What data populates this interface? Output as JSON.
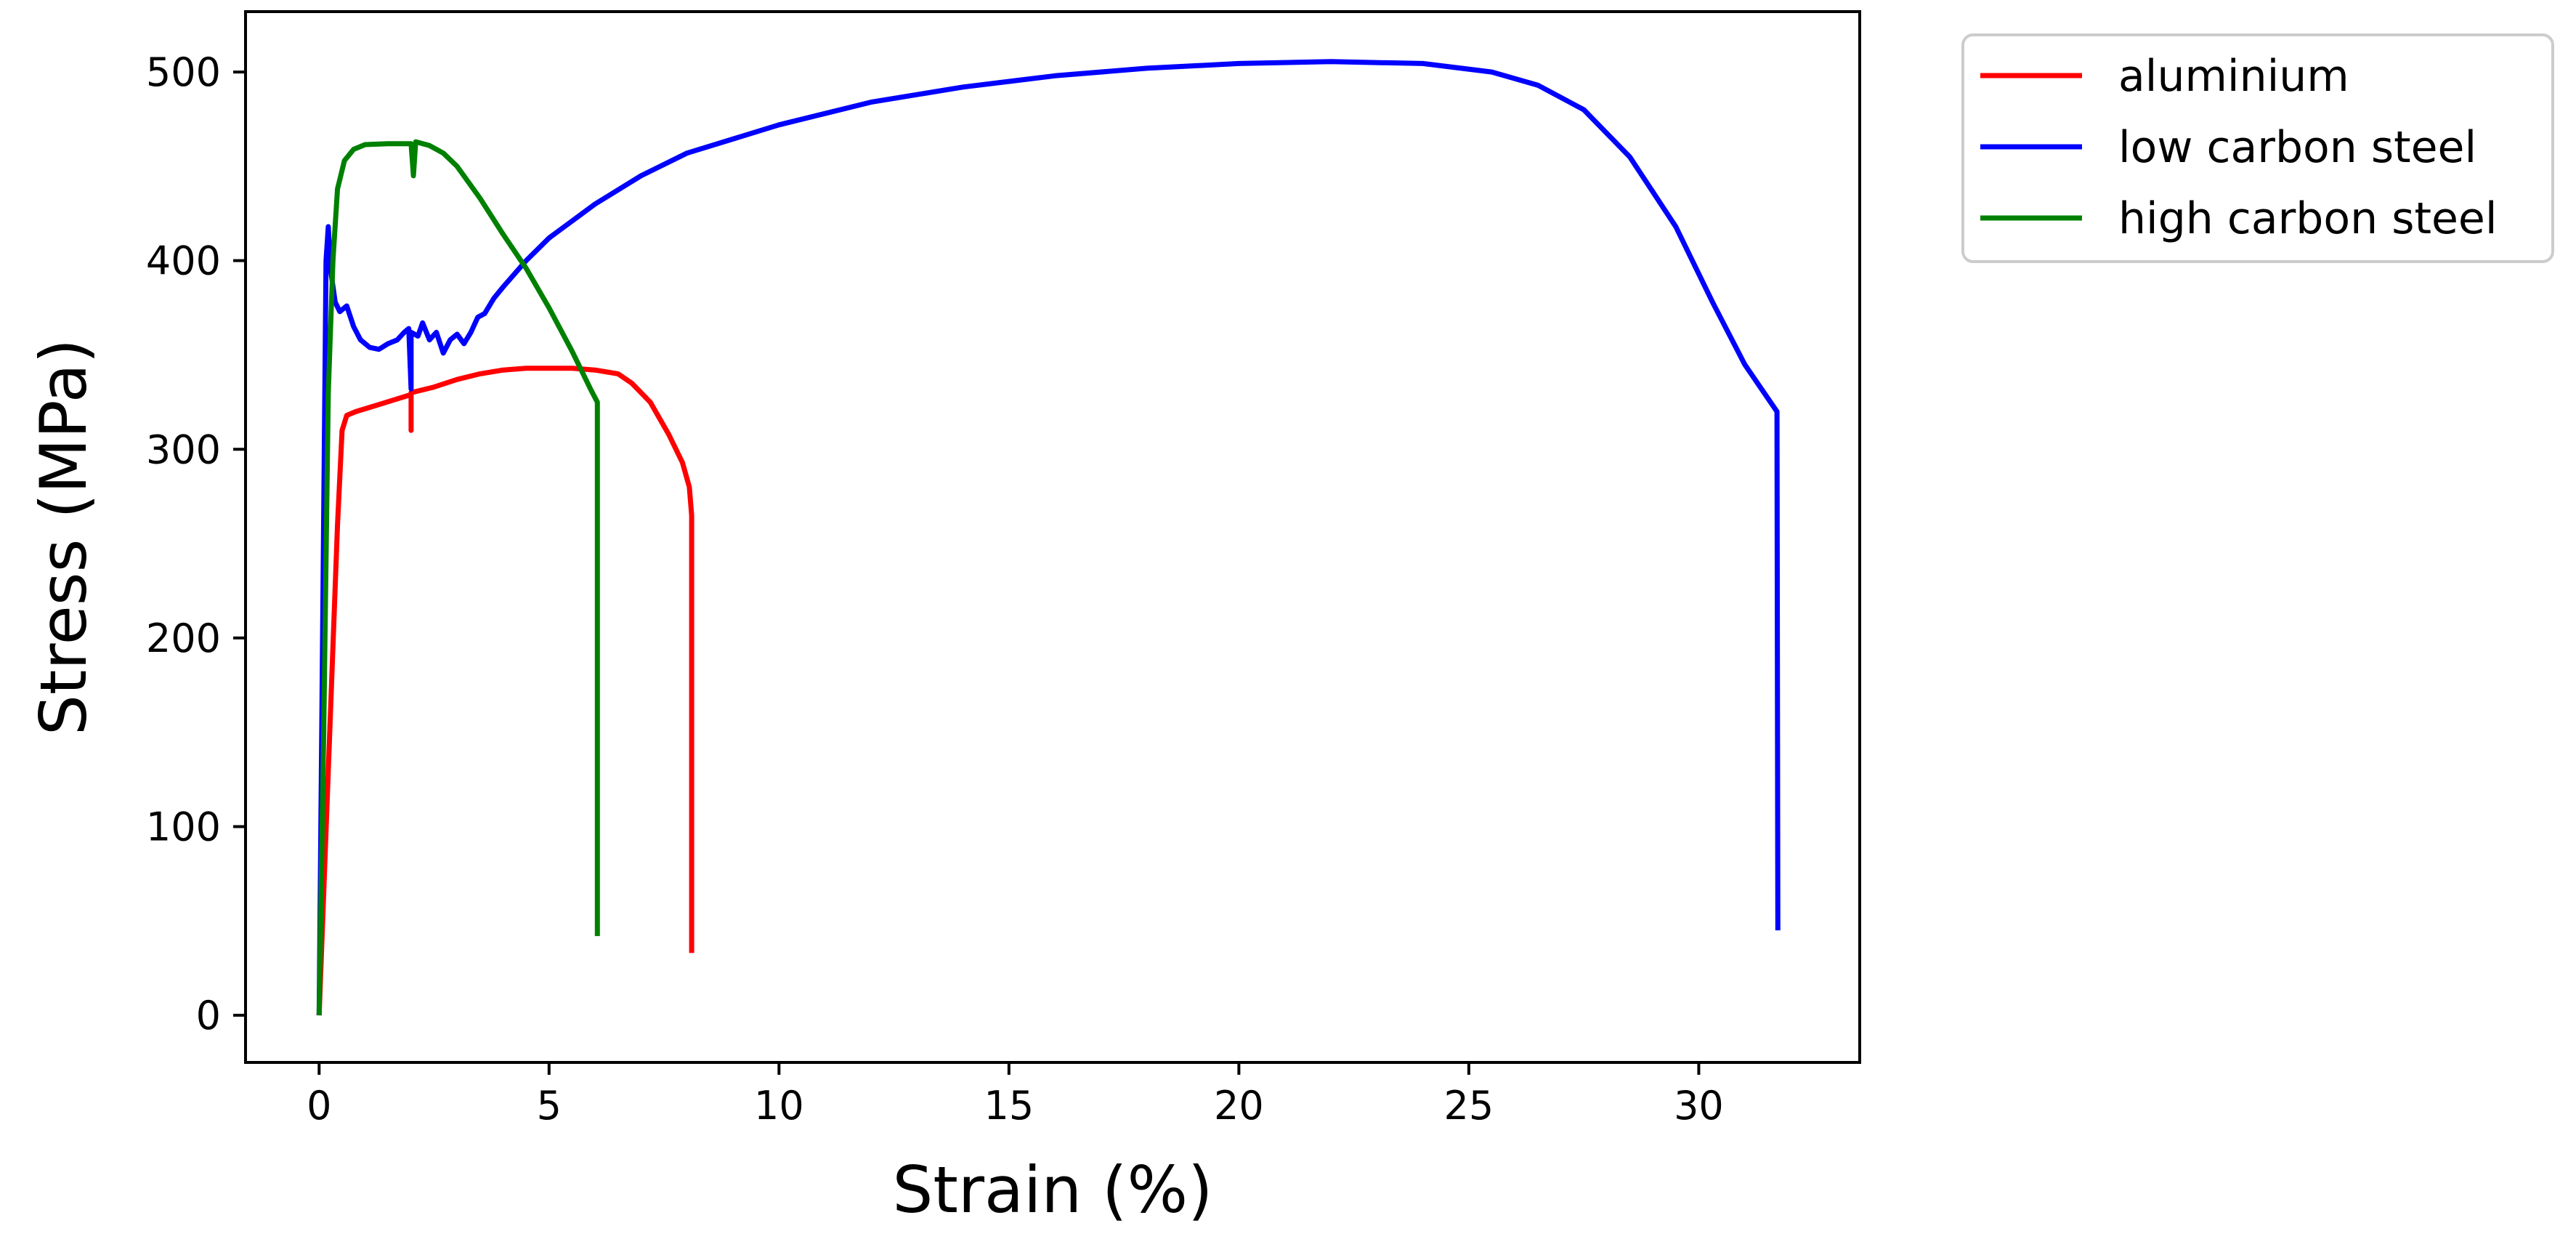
{
  "chart_data": {
    "type": "line",
    "xlabel": "Strain (%)",
    "ylabel": "Stress (MPa)",
    "xlim": [
      -1.6,
      33.5
    ],
    "ylim": [
      -25,
      532
    ],
    "xticks": [
      0,
      5,
      10,
      15,
      20,
      25,
      30
    ],
    "yticks": [
      0,
      100,
      200,
      300,
      400,
      500
    ],
    "grid": false,
    "legend": "outside-top-right",
    "series": [
      {
        "name": "aluminium",
        "color": "#ff0000",
        "points": [
          [
            0,
            0
          ],
          [
            0.4,
            260
          ],
          [
            0.5,
            310
          ],
          [
            0.6,
            318
          ],
          [
            0.8,
            320
          ],
          [
            1.2,
            323
          ],
          [
            1.6,
            326
          ],
          [
            2.0,
            329
          ],
          [
            2.0,
            310
          ],
          [
            2.0,
            330
          ],
          [
            2.5,
            333
          ],
          [
            3.0,
            337
          ],
          [
            3.5,
            340
          ],
          [
            4.0,
            342
          ],
          [
            4.5,
            343
          ],
          [
            5.0,
            343
          ],
          [
            5.5,
            343
          ],
          [
            6.0,
            342
          ],
          [
            6.5,
            340
          ],
          [
            6.8,
            335
          ],
          [
            7.2,
            325
          ],
          [
            7.6,
            308
          ],
          [
            7.9,
            293
          ],
          [
            8.05,
            280
          ],
          [
            8.1,
            265
          ],
          [
            8.1,
            33
          ]
        ]
      },
      {
        "name": "low carbon steel",
        "color": "#0000ff",
        "points": [
          [
            0,
            0
          ],
          [
            0.15,
            400
          ],
          [
            0.2,
            418
          ],
          [
            0.25,
            395
          ],
          [
            0.35,
            378
          ],
          [
            0.45,
            373
          ],
          [
            0.6,
            376
          ],
          [
            0.75,
            365
          ],
          [
            0.9,
            358
          ],
          [
            1.1,
            354
          ],
          [
            1.3,
            353
          ],
          [
            1.5,
            356
          ],
          [
            1.7,
            358
          ],
          [
            1.85,
            362
          ],
          [
            1.95,
            364
          ],
          [
            2.0,
            332
          ],
          [
            2.0,
            362
          ],
          [
            2.15,
            360
          ],
          [
            2.25,
            367
          ],
          [
            2.4,
            358
          ],
          [
            2.55,
            362
          ],
          [
            2.7,
            351
          ],
          [
            2.85,
            358
          ],
          [
            3.0,
            361
          ],
          [
            3.15,
            356
          ],
          [
            3.3,
            362
          ],
          [
            3.45,
            370
          ],
          [
            3.6,
            372
          ],
          [
            3.8,
            380
          ],
          [
            4.0,
            386
          ],
          [
            4.5,
            400
          ],
          [
            5.0,
            412
          ],
          [
            6.0,
            430
          ],
          [
            7.0,
            445
          ],
          [
            8.0,
            457
          ],
          [
            10.0,
            472
          ],
          [
            12.0,
            484
          ],
          [
            14.0,
            492
          ],
          [
            16.0,
            498
          ],
          [
            18.0,
            502
          ],
          [
            20.0,
            504.5
          ],
          [
            22.0,
            505.5
          ],
          [
            24.0,
            504.5
          ],
          [
            25.5,
            500
          ],
          [
            26.5,
            493
          ],
          [
            27.5,
            480
          ],
          [
            28.5,
            455
          ],
          [
            29.5,
            418
          ],
          [
            30.3,
            378
          ],
          [
            31.0,
            345
          ],
          [
            31.7,
            320
          ],
          [
            31.72,
            45
          ]
        ]
      },
      {
        "name": "high carbon steel",
        "color": "#008000",
        "points": [
          [
            0,
            0
          ],
          [
            0.1,
            150
          ],
          [
            0.2,
            330
          ],
          [
            0.3,
            400
          ],
          [
            0.4,
            438
          ],
          [
            0.55,
            453
          ],
          [
            0.75,
            459
          ],
          [
            1.0,
            461.5
          ],
          [
            1.5,
            462
          ],
          [
            2.0,
            462
          ],
          [
            2.05,
            445
          ],
          [
            2.1,
            463
          ],
          [
            2.4,
            461
          ],
          [
            2.7,
            457
          ],
          [
            3.0,
            450
          ],
          [
            3.5,
            433
          ],
          [
            4.0,
            414
          ],
          [
            4.5,
            396
          ],
          [
            5.0,
            375
          ],
          [
            5.5,
            352
          ],
          [
            5.9,
            332
          ],
          [
            6.05,
            325
          ],
          [
            6.05,
            42
          ]
        ]
      }
    ]
  }
}
